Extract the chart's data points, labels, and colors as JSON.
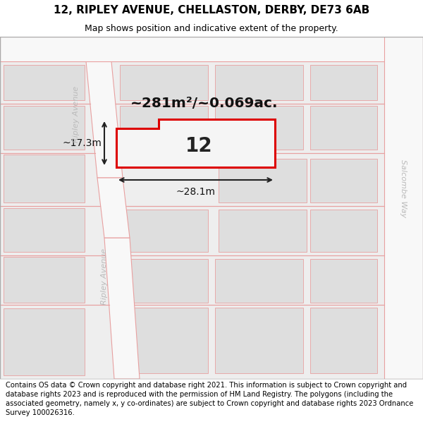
{
  "title_line1": "12, RIPLEY AVENUE, CHELLASTON, DERBY, DE73 6AB",
  "title_line2": "Map shows position and indicative extent of the property.",
  "footer": "Contains OS data © Crown copyright and database right 2021. This information is subject to Crown copyright and database rights 2023 and is reproduced with the permission of HM Land Registry. The polygons (including the associated geometry, namely x, y co-ordinates) are subject to Crown copyright and database rights 2023 Ordnance Survey 100026316.",
  "area_label": "~281m²/~0.069ac.",
  "number_label": "12",
  "width_label": "~28.1m",
  "height_label": "~17.3m",
  "street_label_top": "Ripley Avenue",
  "street_label_bottom": "Ripley Avenue",
  "street_label_right": "Salcombe Way",
  "map_bg": "#eeeeee",
  "road_fill": "#f8f8f8",
  "block_fill": "#dedede",
  "road_stroke": "#e8a0a0",
  "property_stroke": "#dd0000",
  "property_fill": "#f8f8f8",
  "measurement_color": "#222222",
  "title_fontsize": 11,
  "subtitle_fontsize": 9,
  "footer_fontsize": 7.2,
  "street_label_color": "#bbbbbb"
}
